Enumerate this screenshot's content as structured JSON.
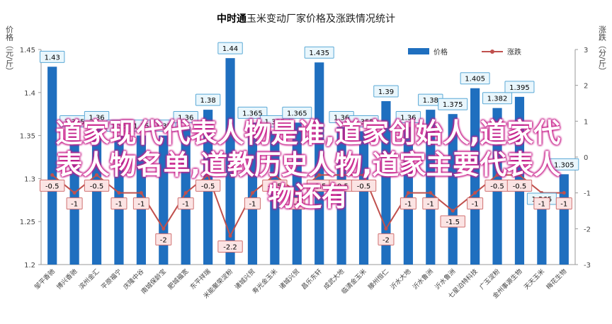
{
  "chart_data": {
    "type": "bar+line",
    "title_brand": "中时通",
    "title_rest": "玉米变动厂家价格及涨跌情况统计",
    "ylabel_left": "价格（元/斤）",
    "ylabel_right": "涨跌（分/斤）",
    "ylim_left": [
      1.2,
      1.45
    ],
    "ylim_right": [
      -3,
      3
    ],
    "yticks_left": [
      "1.2",
      "1.25",
      "1.3",
      "1.35",
      "1.4",
      "1.45"
    ],
    "yticks_right": [
      "-3",
      "-2",
      "-1",
      "0",
      "1",
      "2",
      "3"
    ],
    "legend": {
      "bar": "价格",
      "line": "涨跌",
      "position": "top-right"
    },
    "categories": [
      "邹平香驰",
      "博兴香驰",
      "滨州金汇",
      "平原福宁",
      "庆隆中谷",
      "南城保龄宝",
      "肥城福宽",
      "东平祥瑞",
      "米能聚荣淀粉",
      "诸城兴贸",
      "寿光金玉米",
      "诸城兴贸",
      "昌乐东轩",
      "成武大地",
      "临清金玉米",
      "滕州恒仁",
      "沂水大地",
      "沂水鲁洲",
      "沂水鲁洲",
      "七星泊特科技",
      "广玉淀粉",
      "金州事源生物",
      "天天玉米",
      "梅花生物"
    ],
    "series": [
      {
        "name": "价格",
        "type": "bar",
        "color": "#1f6fbf",
        "values": [
          1.43,
          1.355,
          1.36,
          1.35,
          1.35,
          1.35,
          1.36,
          1.38,
          1.44,
          1.365,
          1.355,
          1.365,
          1.435,
          1.36,
          1.355,
          1.39,
          1.36,
          1.38,
          1.375,
          1.405,
          1.382,
          1.395,
          1.265,
          1.305
        ]
      },
      {
        "name": "涨跌",
        "type": "line",
        "color": "#c0504d",
        "values": [
          -0.5,
          -1,
          -0.5,
          -1,
          -1,
          -2,
          -1,
          -0.5,
          -2.2,
          -1,
          -0.5,
          -1,
          -0.5,
          -0.5,
          -0.5,
          -2,
          -1,
          -1,
          -1.5,
          -1,
          -0.5,
          -0.5,
          -1,
          -1
        ]
      }
    ],
    "bar_labels": [
      "1.43",
      "1.355",
      "1.36",
      "1.35",
      "1.35",
      "1.35",
      "1.36",
      "1.38",
      "1.44",
      "1.365",
      "1.355",
      "1.365",
      "1.435",
      "1.36",
      "1.355",
      "1.39",
      "1.36",
      "1.38",
      "1.375",
      "1.405",
      "1.382",
      "1.395",
      "1.265",
      "1.305"
    ],
    "line_labels": [
      "-0.5",
      "-1",
      "-0.5",
      "-1",
      "-1",
      "-2",
      "-1",
      "-0.5",
      "-2.2",
      "-1",
      "-0.5",
      "-1",
      "-0.5",
      "-0.5",
      "-0.5",
      "-2",
      "-1",
      "-1",
      "-1.5",
      "-1",
      "-0.5",
      "-0.5",
      "-1",
      "-1"
    ],
    "grid": false,
    "overlay_text": [
      "道家现代代表人物是谁,道家创始人,道家代",
      "表人物名单,道教历史人物,道家主要代表人",
      "物还有"
    ]
  }
}
